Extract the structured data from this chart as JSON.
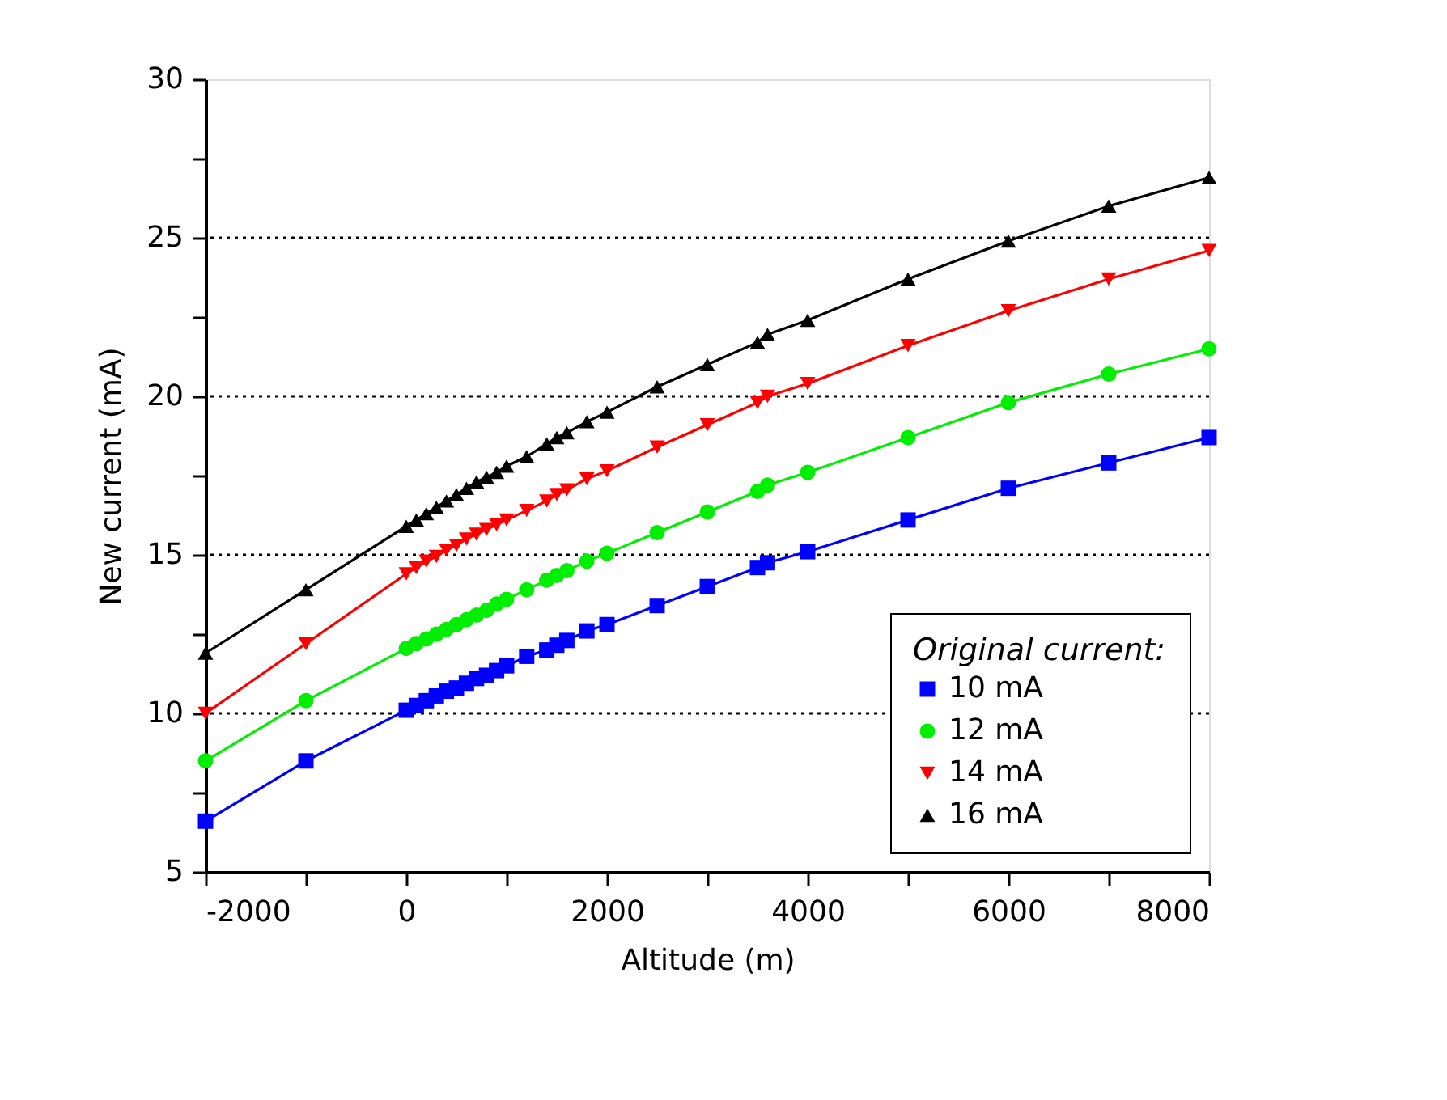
{
  "chart_data": {
    "type": "line",
    "xlabel": "Altitude (m)",
    "ylabel": "New current (mA)",
    "legend_title": "Original current:",
    "legend": "bottom right",
    "grid": "y",
    "x": [
      -2000,
      -1000,
      0,
      100,
      200,
      300,
      400,
      500,
      600,
      700,
      800,
      900,
      1000,
      1200,
      1400,
      1500,
      1600,
      1800,
      2000,
      2500,
      3000,
      3500,
      3600,
      4000,
      5000,
      6000,
      7000,
      8000
    ],
    "xlim": [
      -2000,
      8000
    ],
    "xticks": [
      -2000,
      {
        "value": -1000,
        "label": null
      },
      0,
      {
        "value": 1000,
        "label": null
      },
      2000,
      {
        "value": 3000,
        "label": null
      },
      4000,
      {
        "value": 5000,
        "label": null
      },
      6000,
      {
        "value": 7000,
        "label": null
      },
      8000
    ],
    "ylim": [
      5,
      30
    ],
    "yticks": [
      5,
      {
        "value": 7.5,
        "label": null
      },
      10,
      {
        "value": 12.5,
        "label": null
      },
      15,
      {
        "value": 17.5,
        "label": null
      },
      20,
      {
        "value": 22.5,
        "label": null
      },
      25,
      {
        "value": 27.5,
        "label": null
      },
      30
    ],
    "series": [
      {
        "name": "10 mA",
        "color": "#0000ff",
        "marker": "square",
        "values": [
          6.6,
          8.5,
          10.1,
          10.25,
          10.4,
          10.55,
          10.7,
          10.8,
          10.95,
          11.1,
          11.2,
          11.35,
          11.5,
          11.8,
          12.0,
          12.15,
          12.3,
          12.6,
          12.8,
          13.4,
          14.0,
          14.6,
          14.75,
          15.1,
          16.1,
          17.1,
          17.9,
          18.7
        ]
      },
      {
        "name": "12 mA",
        "color": "#00ee00",
        "marker": "circle",
        "values": [
          8.5,
          10.4,
          12.05,
          12.2,
          12.35,
          12.5,
          12.65,
          12.8,
          12.95,
          13.1,
          13.25,
          13.45,
          13.6,
          13.9,
          14.2,
          14.35,
          14.5,
          14.8,
          15.05,
          15.7,
          16.35,
          17.0,
          17.2,
          17.6,
          18.7,
          19.8,
          20.7,
          21.5
        ]
      },
      {
        "name": "14 mA",
        "color": "#ff0000",
        "marker": "triangle-down",
        "values": [
          10.0,
          12.2,
          14.4,
          14.6,
          14.8,
          14.95,
          15.15,
          15.3,
          15.5,
          15.65,
          15.8,
          15.95,
          16.1,
          16.4,
          16.7,
          16.9,
          17.05,
          17.4,
          17.65,
          18.4,
          19.1,
          19.8,
          20.0,
          20.4,
          21.6,
          22.7,
          23.7,
          24.6
        ]
      },
      {
        "name": "16 mA",
        "color": "#000000",
        "marker": "triangle-up",
        "values": [
          11.9,
          13.9,
          15.9,
          16.1,
          16.3,
          16.5,
          16.7,
          16.9,
          17.1,
          17.3,
          17.45,
          17.6,
          17.8,
          18.1,
          18.5,
          18.7,
          18.85,
          19.2,
          19.5,
          20.3,
          21.0,
          21.7,
          21.95,
          22.4,
          23.7,
          24.9,
          26.0,
          26.9
        ]
      }
    ]
  }
}
